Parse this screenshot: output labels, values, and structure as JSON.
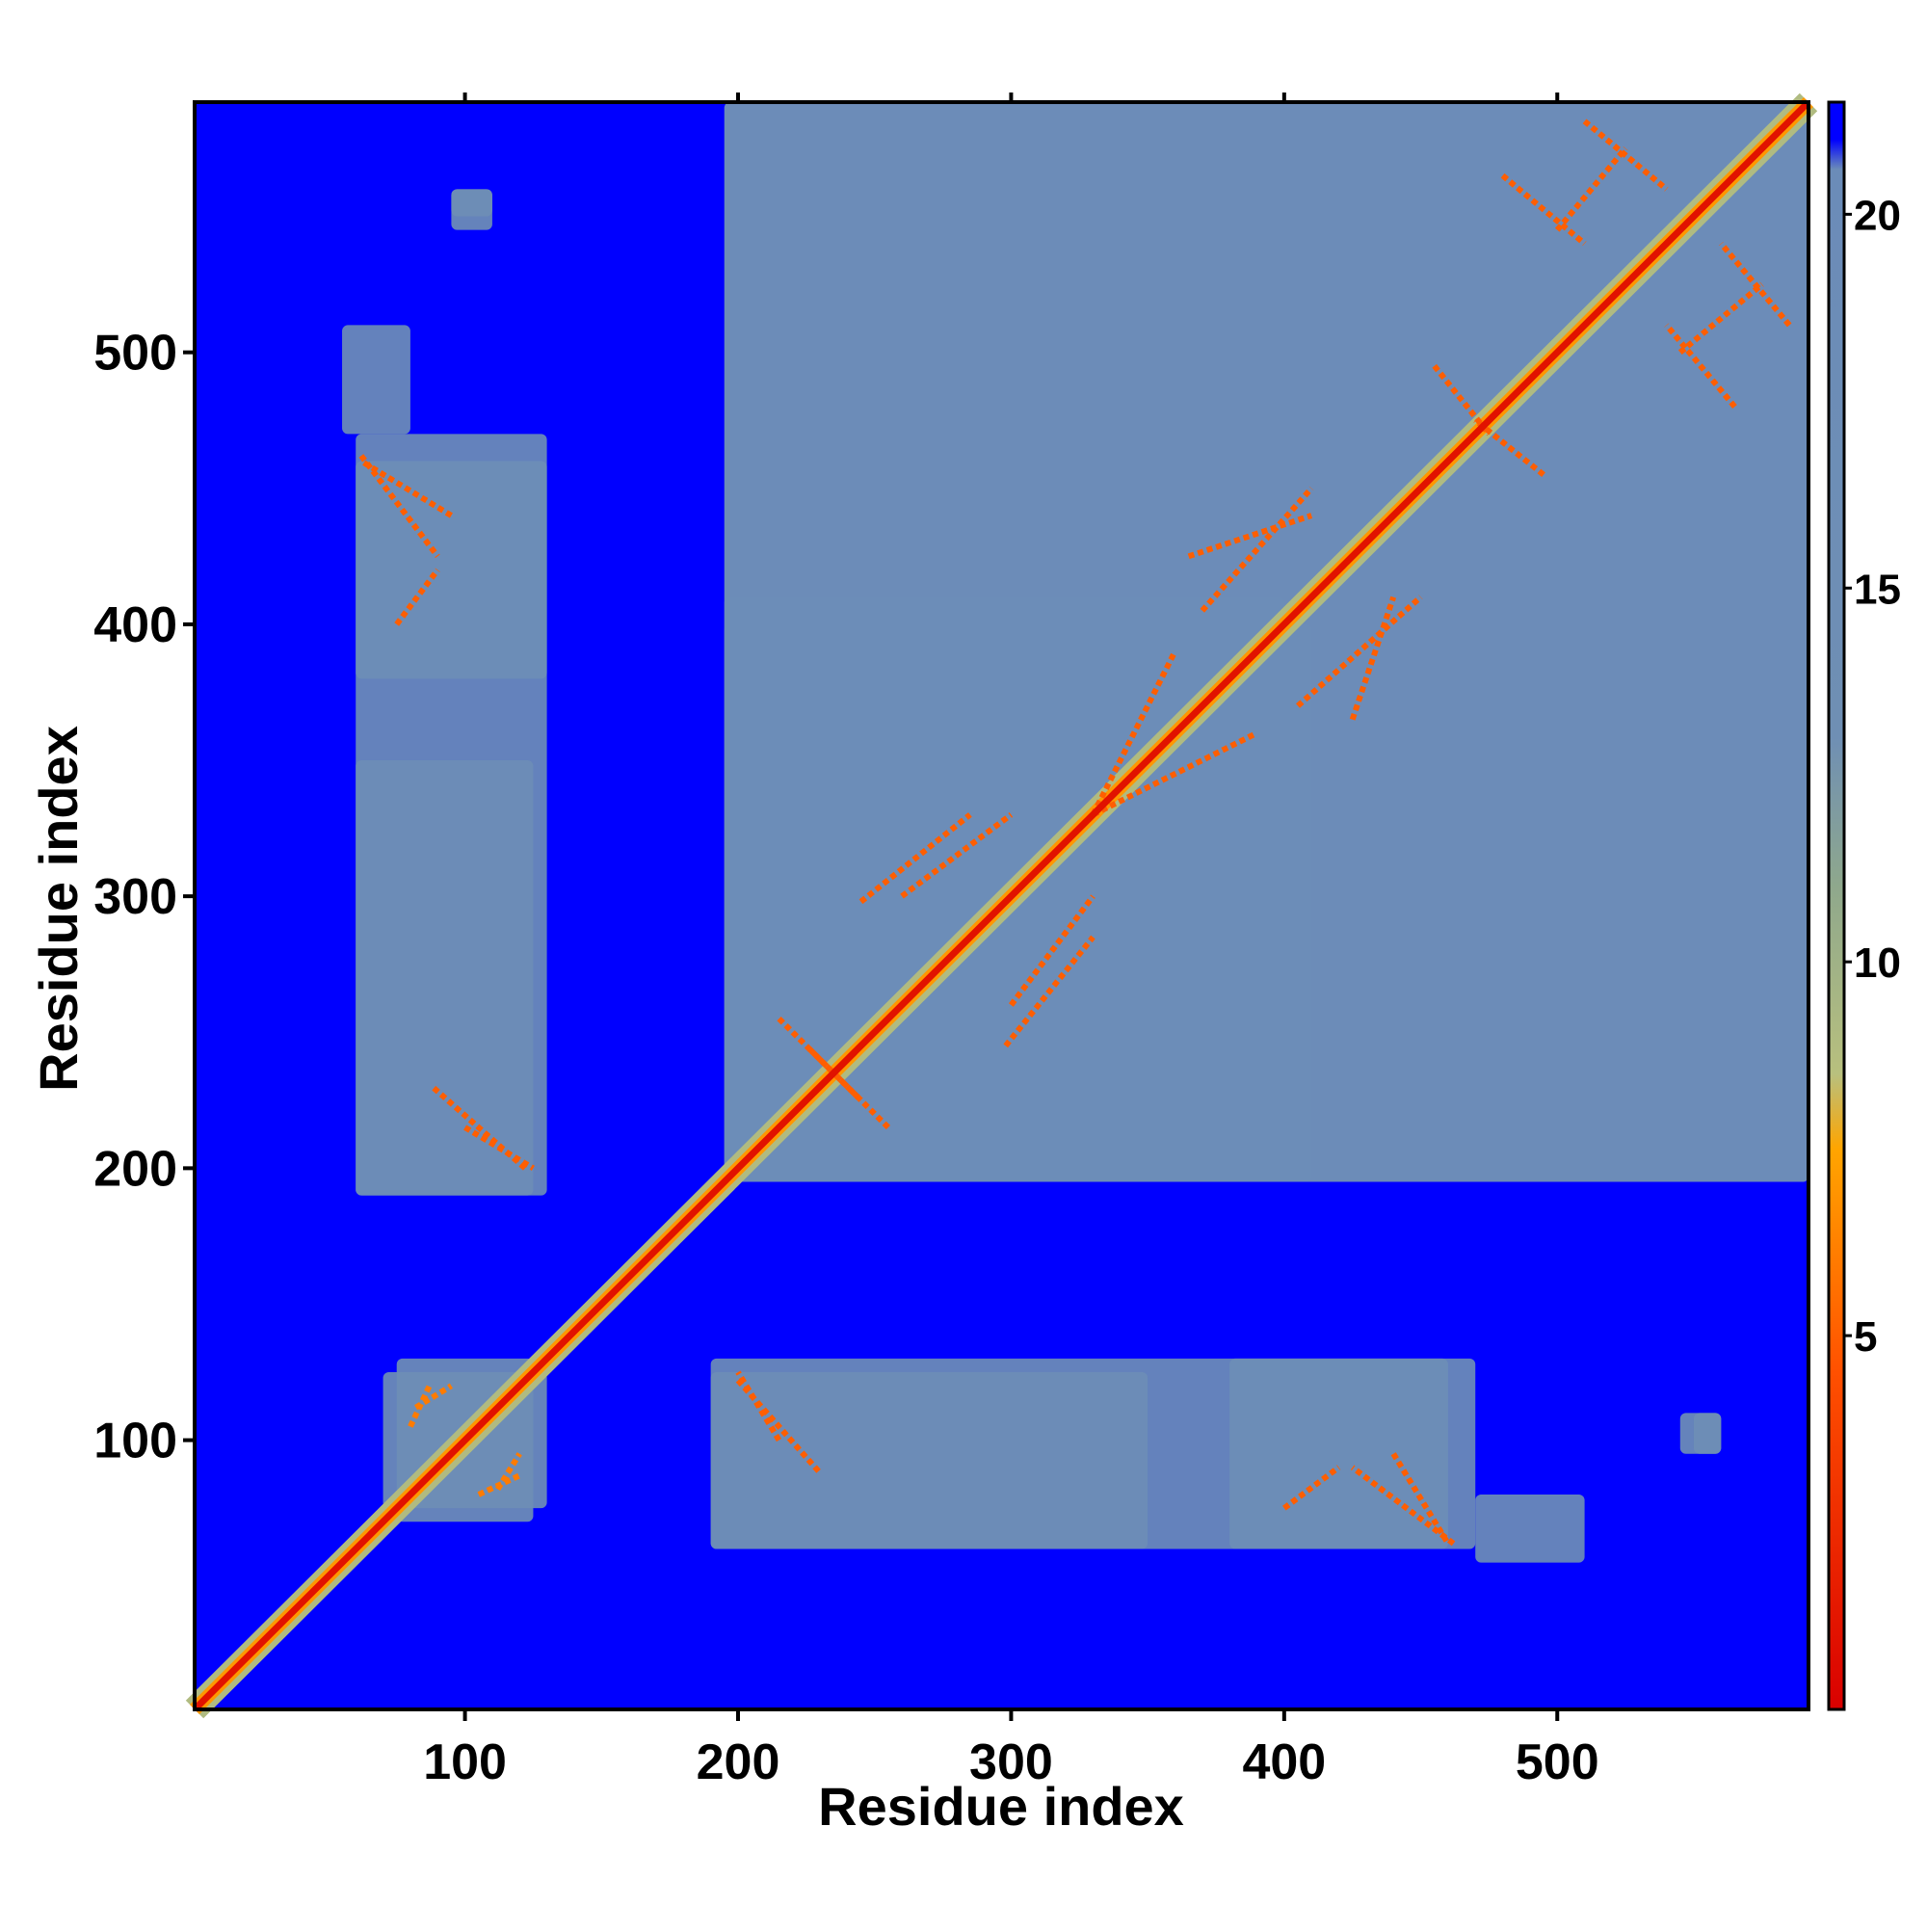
{
  "chart_data": {
    "type": "heatmap",
    "title": "",
    "xlabel": "Residue index",
    "ylabel": "Residue index",
    "xlim": [
      1,
      592
    ],
    "ylim": [
      1,
      592
    ],
    "x_ticks": [
      100,
      200,
      300,
      400,
      500
    ],
    "y_ticks": [
      100,
      200,
      300,
      400,
      500
    ],
    "colorbar": {
      "ticks": [
        5,
        10,
        15,
        20
      ],
      "range": [
        0,
        21.5
      ],
      "stops": [
        {
          "value": 0,
          "color": "#d90000"
        },
        {
          "value": 4.5,
          "color": "#ff5000"
        },
        {
          "value": 7.5,
          "color": "#ffa500"
        },
        {
          "value": 8.5,
          "color": "#b8c07e"
        },
        {
          "value": 11,
          "color": "#8fa88c"
        },
        {
          "value": 13,
          "color": "#6f8fb4"
        },
        {
          "value": 20.6,
          "color": "#6b8cb8"
        },
        {
          "value": 21,
          "color": "#0000ff"
        },
        {
          "value": 21.5,
          "color": "#0000ff"
        }
      ]
    },
    "background_value": 21.5,
    "diagonal_value": 1,
    "domains": [
      {
        "x": [
          60,
          130
        ],
        "y": [
          190,
          470
        ],
        "value": 17
      },
      {
        "x": [
          70,
          130
        ],
        "y": [
          75,
          125
        ],
        "value": 15
      },
      {
        "x": [
          195,
          400
        ],
        "y": [
          195,
          410
        ],
        "value": 16
      },
      {
        "x": [
          195,
          592
        ],
        "y": [
          195,
          592
        ],
        "value": 18
      },
      {
        "x": [
          190,
          350
        ],
        "y": [
          60,
          125
        ],
        "value": 17
      },
      {
        "x": [
          380,
          460
        ],
        "y": [
          60,
          130
        ],
        "value": 16
      },
      {
        "x": [
          470,
          510
        ],
        "y": [
          55,
          80
        ],
        "value": 17
      },
      {
        "x": [
          545,
          560
        ],
        "y": [
          95,
          110
        ],
        "value": 15
      },
      {
        "x": [
          95,
          110
        ],
        "y": [
          550,
          560
        ],
        "value": 15
      }
    ],
    "contact_lines": [
      {
        "from": [
          62,
          462
        ],
        "to": [
          90,
          425
        ],
        "value": 5
      },
      {
        "from": [
          100,
          215
        ],
        "to": [
          125,
          200
        ],
        "value": 5
      },
      {
        "from": [
          82,
          112
        ],
        "to": [
          95,
          120
        ],
        "value": 6
      },
      {
        "from": [
          105,
          80
        ],
        "to": [
          120,
          87
        ],
        "value": 6
      },
      {
        "from": [
          200,
          122
        ],
        "to": [
          230,
          88
        ],
        "value": 5
      },
      {
        "from": [
          400,
          75
        ],
        "to": [
          420,
          90
        ],
        "value": 5
      },
      {
        "from": [
          440,
          95
        ],
        "to": [
          460,
          62
        ],
        "value": 5
      },
      {
        "from": [
          215,
          255
        ],
        "to": [
          245,
          225
        ],
        "value": 5
      },
      {
        "from": [
          245,
          298
        ],
        "to": [
          285,
          330
        ],
        "value": 5
      },
      {
        "from": [
          300,
          260
        ],
        "to": [
          330,
          300
        ],
        "value": 5
      },
      {
        "from": [
          330,
          330
        ],
        "to": [
          360,
          390
        ],
        "value": 5
      },
      {
        "from": [
          370,
          405
        ],
        "to": [
          410,
          450
        ],
        "value": 5
      },
      {
        "from": [
          425,
          365
        ],
        "to": [
          440,
          410
        ],
        "value": 5
      },
      {
        "from": [
          455,
          495
        ],
        "to": [
          475,
          470
        ],
        "value": 5
      },
      {
        "from": [
          480,
          565
        ],
        "to": [
          510,
          540
        ],
        "value": 5
      },
      {
        "from": [
          545,
          500
        ],
        "to": [
          575,
          525
        ],
        "value": 5
      },
      {
        "from": [
          510,
          585
        ],
        "to": [
          540,
          560
        ],
        "value": 5
      }
    ]
  }
}
